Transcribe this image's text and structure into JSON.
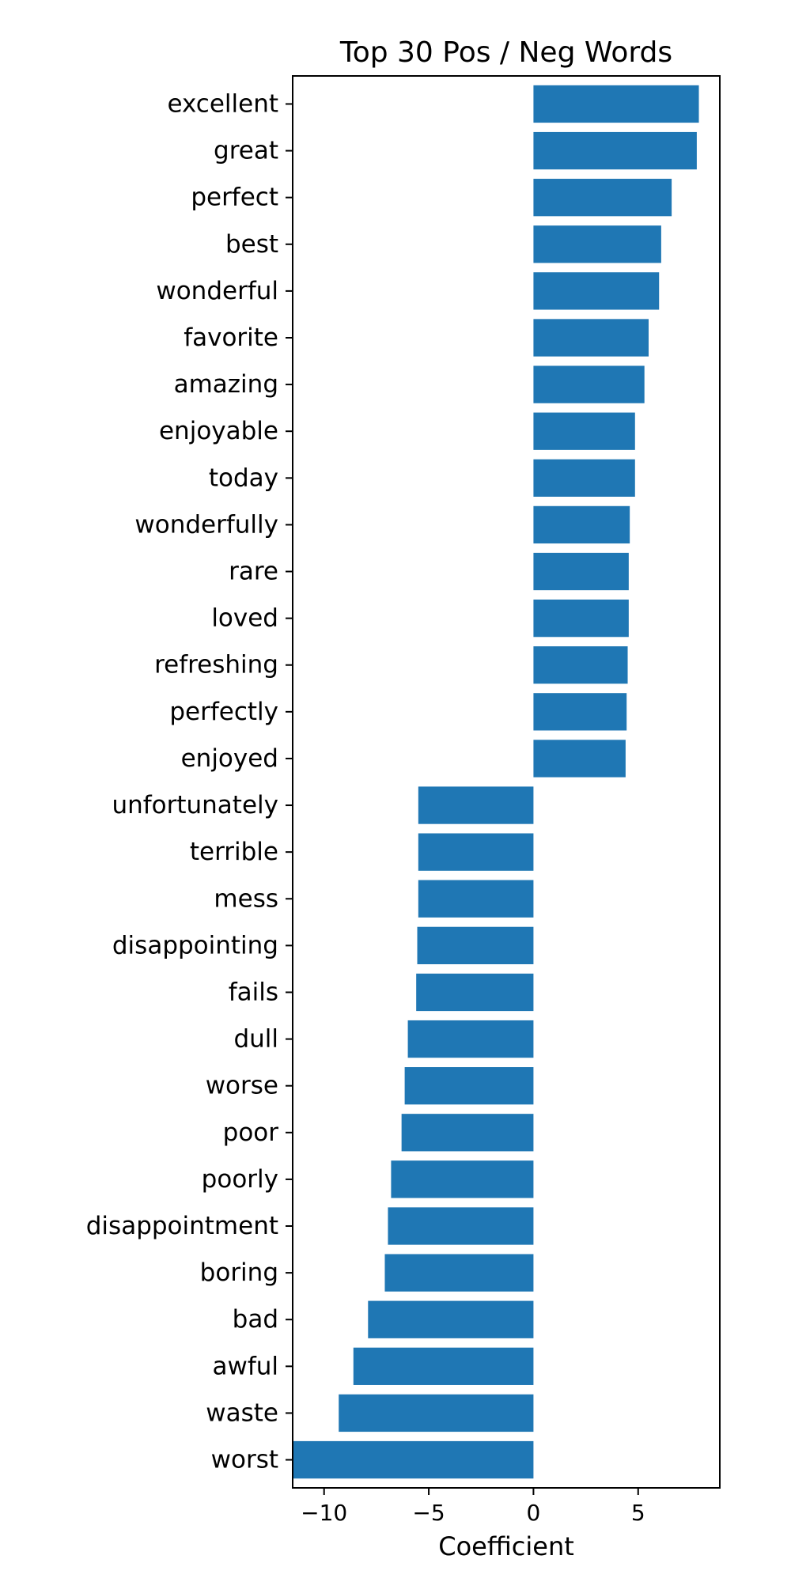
{
  "chart_data": {
    "type": "bar",
    "orientation": "horizontal",
    "title": "Top 30 Pos / Neg Words",
    "xlabel": "Coefficient",
    "ylabel": "",
    "xlim": [
      -11.5,
      8.9
    ],
    "xticks": [
      -10,
      -5,
      0,
      5
    ],
    "xtick_labels": [
      "−10",
      "−5",
      "0",
      "5"
    ],
    "grid": false,
    "bar_color": "#1f77b4",
    "categories": [
      "excellent",
      "great",
      "perfect",
      "best",
      "wonderful",
      "favorite",
      "amazing",
      "enjoyable",
      "today",
      "wonderfully",
      "rare",
      "loved",
      "refreshing",
      "perfectly",
      "enjoyed",
      "unfortunately",
      "terrible",
      "mess",
      "disappointing",
      "fails",
      "dull",
      "worse",
      "poor",
      "poorly",
      "disappointment",
      "boring",
      "bad",
      "awful",
      "waste",
      "worst"
    ],
    "values": [
      7.9,
      7.8,
      6.6,
      6.1,
      6.0,
      5.5,
      5.3,
      4.85,
      4.85,
      4.6,
      4.55,
      4.55,
      4.5,
      4.45,
      4.4,
      -5.5,
      -5.5,
      -5.5,
      -5.55,
      -5.6,
      -6.0,
      -6.15,
      -6.3,
      -6.8,
      -6.95,
      -7.1,
      -7.9,
      -8.6,
      -9.3,
      -11.5
    ]
  }
}
